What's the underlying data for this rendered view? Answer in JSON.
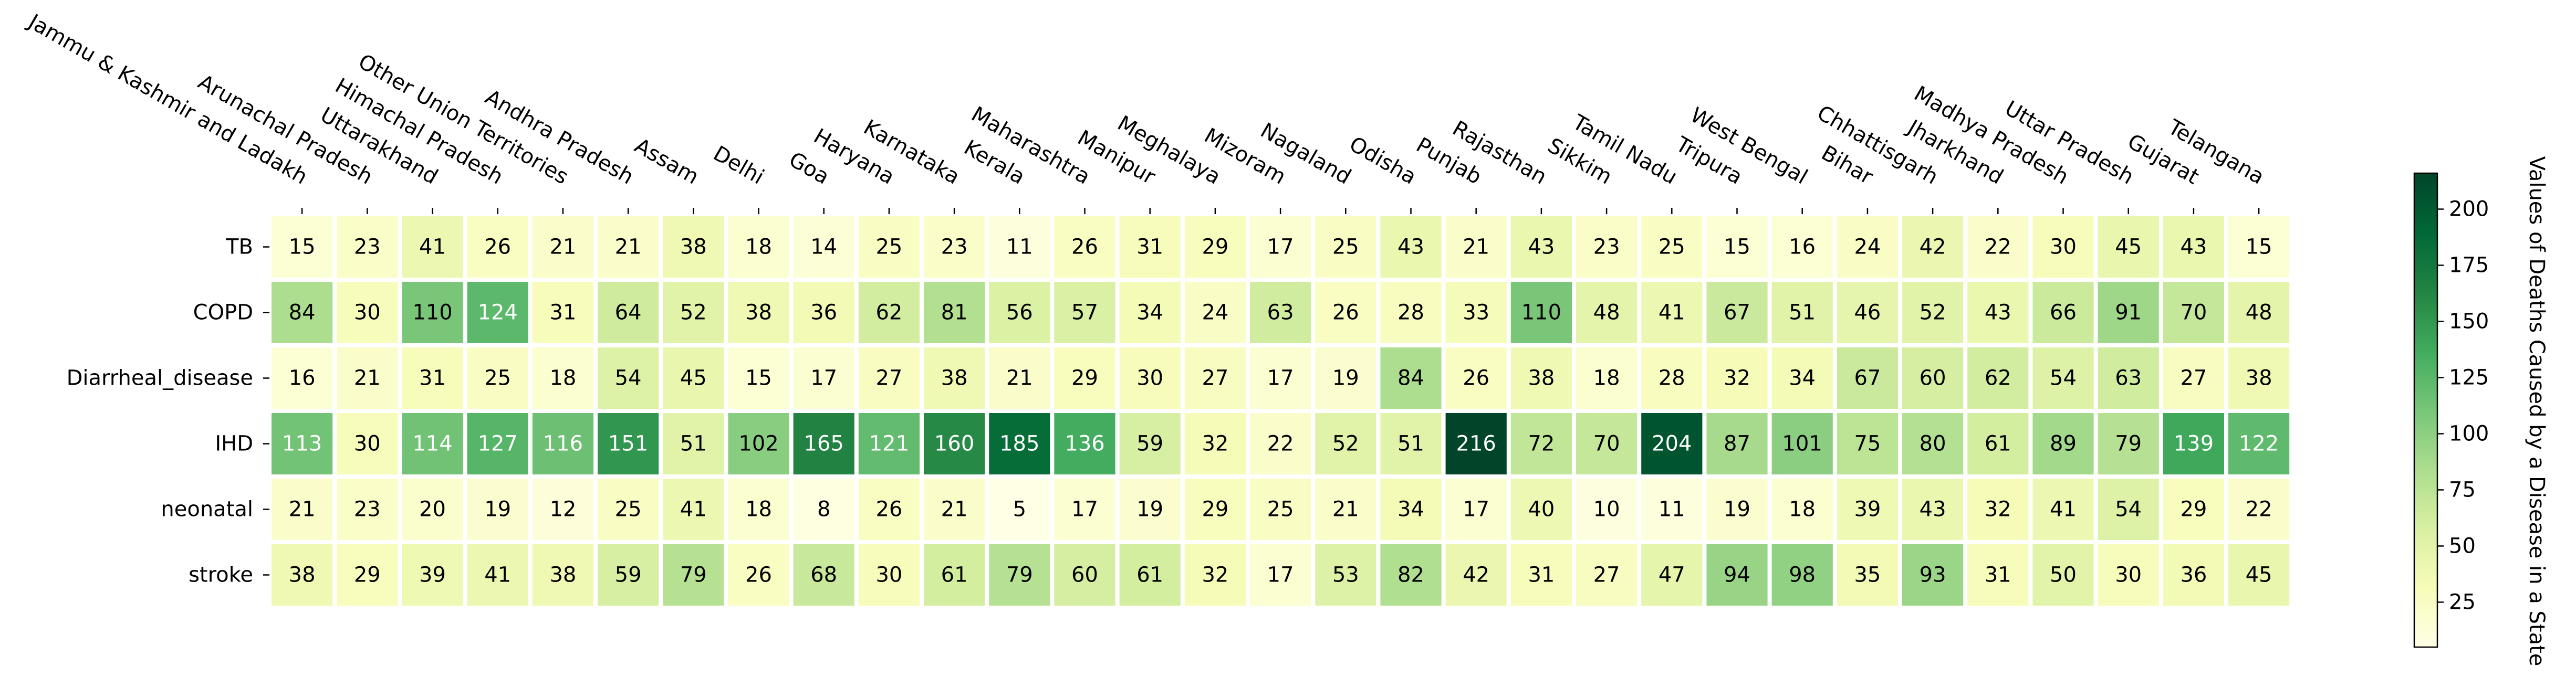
{
  "chart_data": {
    "type": "heatmap",
    "rows": [
      "TB",
      "COPD",
      "Diarrheal_disease",
      "IHD",
      "neonatal",
      "stroke"
    ],
    "columns": [
      "Jammu & Kashmir and Ladakh",
      "Arunachal Pradesh",
      "Uttarakhand",
      "Himachal Pradesh",
      "Other Union Territories",
      "Andhra Pradesh",
      "Assam",
      "Delhi",
      "Goa",
      "Haryana",
      "Karnataka",
      "Kerala",
      "Maharashtra",
      "Manipur",
      "Meghalaya",
      "Mizoram",
      "Nagaland",
      "Odisha",
      "Punjab",
      "Rajasthan",
      "Sikkim",
      "Tamil Nadu",
      "Tripura",
      "West Bengal",
      "Bihar",
      "Chhattisgarh",
      "Jharkhand",
      "Madhya Pradesh",
      "Uttar Pradesh",
      "Gujarat",
      "Telangana"
    ],
    "values": [
      [
        15,
        23,
        41,
        26,
        21,
        21,
        38,
        18,
        14,
        25,
        23,
        11,
        26,
        31,
        29,
        17,
        25,
        43,
        21,
        43,
        23,
        25,
        15,
        16,
        24,
        42,
        22,
        30,
        45,
        43,
        15
      ],
      [
        84,
        30,
        110,
        124,
        31,
        64,
        52,
        38,
        36,
        62,
        81,
        56,
        57,
        34,
        24,
        63,
        26,
        28,
        33,
        110,
        48,
        41,
        67,
        51,
        46,
        52,
        43,
        66,
        91,
        70,
        48
      ],
      [
        16,
        21,
        31,
        25,
        18,
        54,
        45,
        15,
        17,
        27,
        38,
        21,
        29,
        30,
        27,
        17,
        19,
        84,
        26,
        38,
        18,
        28,
        32,
        34,
        67,
        60,
        62,
        54,
        63,
        27,
        38
      ],
      [
        113,
        30,
        114,
        127,
        116,
        151,
        51,
        102,
        165,
        121,
        160,
        185,
        136,
        59,
        32,
        22,
        52,
        51,
        216,
        72,
        70,
        204,
        87,
        101,
        75,
        80,
        61,
        89,
        79,
        139,
        122
      ],
      [
        21,
        23,
        20,
        19,
        12,
        25,
        41,
        18,
        8,
        26,
        21,
        5,
        17,
        19,
        29,
        25,
        21,
        34,
        17,
        40,
        10,
        11,
        19,
        18,
        39,
        43,
        32,
        41,
        54,
        29,
        22
      ],
      [
        38,
        29,
        39,
        41,
        38,
        59,
        79,
        26,
        68,
        30,
        61,
        79,
        60,
        61,
        32,
        17,
        53,
        82,
        42,
        31,
        27,
        47,
        94,
        98,
        35,
        93,
        31,
        50,
        30,
        36,
        45
      ]
    ],
    "colormap": "YlGn",
    "vmin": 5,
    "vmax": 216,
    "colorbar": {
      "label": "Values of Deaths Caused by a Disease in a State",
      "ticks": [
        25,
        50,
        75,
        100,
        125,
        150,
        175,
        200
      ]
    },
    "x_tick_position": "top",
    "x_tick_rotation": "-30",
    "annotated": true
  }
}
